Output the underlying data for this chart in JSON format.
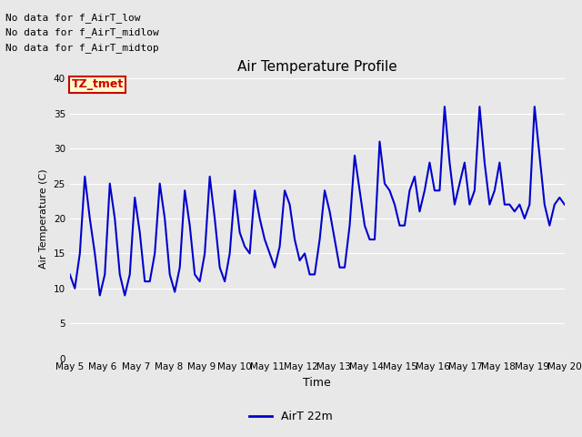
{
  "title": "Air Temperature Profile",
  "xlabel": "Time",
  "ylabel": "Air Temperature (C)",
  "ylim": [
    0,
    40
  ],
  "yticks": [
    0,
    5,
    10,
    15,
    20,
    25,
    30,
    35,
    40
  ],
  "line_color": "#0000cc",
  "line_width": 1.5,
  "bg_color": "#e8e8e8",
  "fig_bg_color": "#e8e8e8",
  "legend_label": "AirT 22m",
  "no_data_texts": [
    "No data for f_AirT_low",
    "No data for f_AirT_midlow",
    "No data for f_AirT_midtop"
  ],
  "tz_tmet_label": "TZ_tmet",
  "tz_tmet_color": "#cc0000",
  "tz_tmet_bg": "#ffffcc",
  "x_start_day": 5,
  "x_end_day": 20,
  "x_tick_days": [
    5,
    6,
    7,
    8,
    9,
    10,
    11,
    12,
    13,
    14,
    15,
    16,
    17,
    18,
    19,
    20
  ],
  "x_tick_labels": [
    "May 5",
    "May 6",
    "May 7",
    "May 8",
    "May 9",
    "May 10",
    "May 11",
    "May 12",
    "May 13",
    "May 14",
    "May 15",
    "May 16",
    "May 17",
    "May 18",
    "May 19",
    "May 20"
  ],
  "temperatures": [
    12,
    10,
    15,
    26,
    20,
    15,
    9,
    12,
    25,
    20,
    12,
    9,
    12,
    23,
    18,
    11,
    11,
    15,
    25,
    20,
    12,
    9.5,
    13,
    24,
    19,
    12,
    11,
    15,
    26,
    20,
    13,
    11,
    15,
    24,
    18,
    16,
    15,
    24,
    20,
    17,
    15,
    13,
    16,
    24,
    22,
    17,
    14,
    15,
    12,
    12,
    17,
    24,
    21,
    17,
    13,
    13,
    19,
    29,
    24,
    19,
    17,
    17,
    31,
    25,
    24,
    22,
    19,
    19,
    24,
    26,
    21,
    24,
    28,
    24,
    24,
    36,
    28,
    22,
    25,
    28,
    22,
    24,
    36,
    28,
    22,
    24,
    28,
    22,
    22,
    21,
    22,
    20,
    22,
    36,
    29,
    22,
    19,
    22,
    23,
    22
  ]
}
